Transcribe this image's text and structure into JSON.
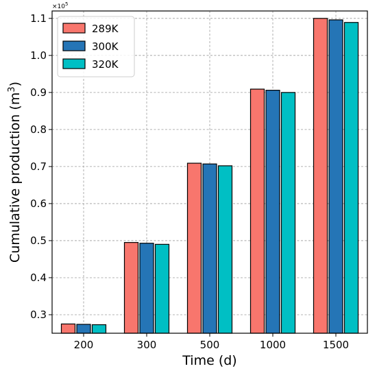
{
  "chart_data": {
    "type": "bar",
    "xlabel": "Time (d)",
    "ylabel": "Cumulative production (m",
    "ylabel_sup": "3",
    "ylabel_end": ")",
    "y_scale_label": "×10",
    "y_scale_exp": "5",
    "categories": [
      "200",
      "300",
      "500",
      "1000",
      "1500"
    ],
    "series": [
      {
        "name": "289K",
        "color": "#f8766d",
        "values": [
          0.275,
          0.495,
          0.709,
          0.909,
          1.1
        ]
      },
      {
        "name": "300K",
        "color": "#2575b6",
        "values": [
          0.274,
          0.493,
          0.707,
          0.906,
          1.096
        ]
      },
      {
        "name": "320K",
        "color": "#00bfc4",
        "values": [
          0.273,
          0.49,
          0.702,
          0.9,
          1.089
        ]
      }
    ],
    "ylim": [
      0.25,
      1.12
    ],
    "yticks": [
      "0.3",
      "0.4",
      "0.5",
      "0.6",
      "0.7",
      "0.8",
      "0.9",
      "1.0",
      "1.1"
    ],
    "grid": true,
    "legend_position": "top-left"
  }
}
